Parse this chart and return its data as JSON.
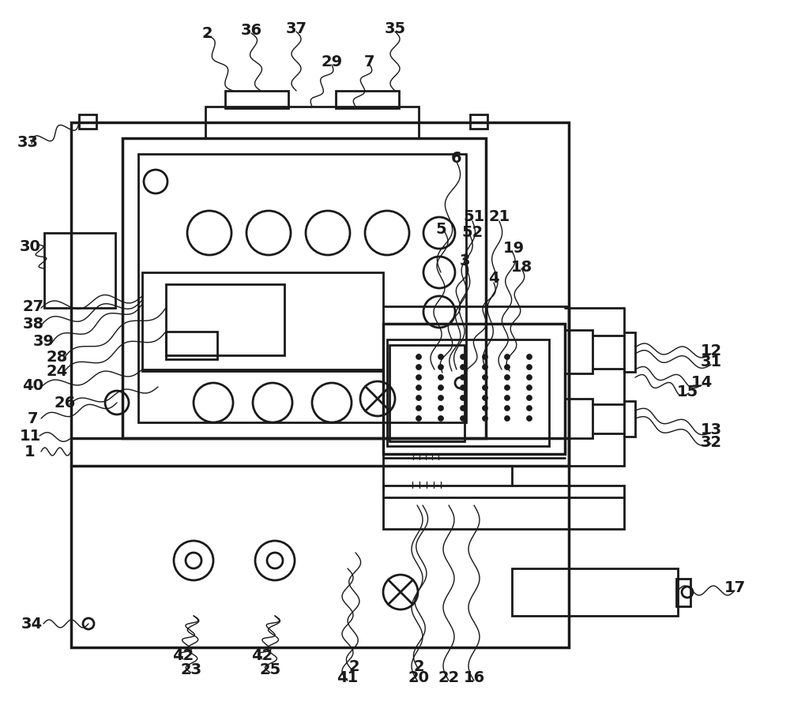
{
  "bg_color": "#ffffff",
  "line_color": "#1a1a1a",
  "lw_main": 2.0,
  "lw_thin": 1.2,
  "lw_thick": 2.5
}
